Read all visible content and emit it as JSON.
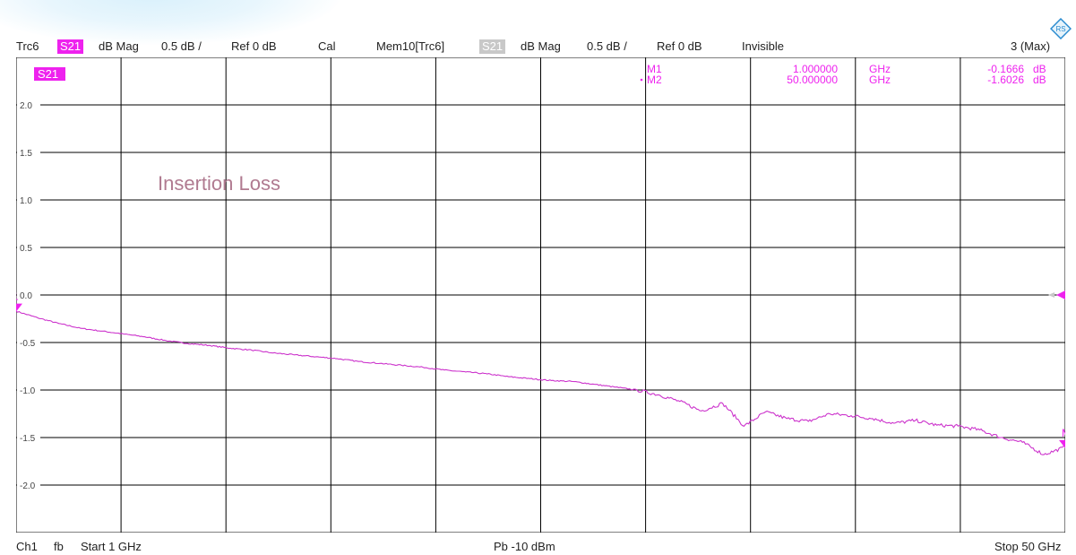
{
  "header": {
    "trace": "Trc6",
    "trace_param": "S21",
    "trace_format": "dB Mag",
    "trace_scale": "0.5 dB /",
    "trace_ref": "Ref 0 dB",
    "trace_cal": "Cal",
    "mem": "Mem10[Trc6]",
    "mem_param": "S21",
    "mem_format": "dB Mag",
    "mem_scale": "0.5 dB /",
    "mem_ref": "Ref 0 dB",
    "mem_state": "Invisible",
    "max": "3 (Max)"
  },
  "footer": {
    "channel": "Ch1",
    "sweep": "fb",
    "start": "Start  1 GHz",
    "power": "Pb  -10 dBm",
    "stop": "Stop  50 GHz"
  },
  "colors": {
    "trace": "#cc33cc",
    "marker": "#ee22ee",
    "grid": "#000000",
    "annotation": "#b07a90"
  },
  "chart_data": {
    "type": "line",
    "trace_tag": "S21",
    "annotation": "Insertion Loss",
    "x_unit": "GHz",
    "y_unit": "dB",
    "xlim": [
      1,
      50
    ],
    "ylim": [
      -2.5,
      2.5
    ],
    "y_ticks": [
      2.0,
      1.5,
      1.0,
      0.5,
      0.0,
      -0.5,
      -1.0,
      -1.5,
      -2.0
    ],
    "y_tick_labels": [
      "2.0",
      "1.5",
      "1.0",
      "0.5",
      "0.0",
      "-0.5",
      "-1.0",
      "-1.5",
      "-2.0"
    ],
    "grid": true,
    "series": [
      {
        "x": [
          1,
          2,
          3,
          4,
          5,
          6,
          7,
          8,
          9,
          10,
          11,
          12,
          13,
          14,
          15,
          16,
          17,
          18,
          19,
          20,
          21,
          22,
          23,
          24,
          25,
          26,
          27,
          28,
          29,
          30,
          31,
          32,
          33,
          34,
          35,
          36,
          37,
          38,
          39,
          40,
          41,
          42,
          43,
          44,
          45,
          46,
          47,
          48,
          49,
          50
        ],
        "y": [
          -0.17,
          -0.24,
          -0.3,
          -0.35,
          -0.38,
          -0.41,
          -0.44,
          -0.48,
          -0.51,
          -0.53,
          -0.56,
          -0.58,
          -0.61,
          -0.63,
          -0.65,
          -0.67,
          -0.7,
          -0.72,
          -0.74,
          -0.76,
          -0.79,
          -0.81,
          -0.83,
          -0.86,
          -0.88,
          -0.9,
          -0.91,
          -0.94,
          -0.97,
          -1.0,
          -1.05,
          -1.12,
          -1.22,
          -1.14,
          -1.38,
          -1.23,
          -1.3,
          -1.33,
          -1.25,
          -1.27,
          -1.3,
          -1.35,
          -1.32,
          -1.37,
          -1.38,
          -1.42,
          -1.5,
          -1.55,
          -1.68,
          -1.6
        ]
      }
    ],
    "markers": [
      {
        "name": "M1",
        "freq": "1.000000",
        "freq_unit": "GHz",
        "value": "-0.1666",
        "value_unit": "dB",
        "x": 1,
        "y": -0.1666
      },
      {
        "name": "M2",
        "freq": "50.000000",
        "freq_unit": "GHz",
        "value": "-1.6026",
        "value_unit": "dB",
        "x": 50,
        "y": -1.6026
      }
    ],
    "ref_level": 0
  }
}
